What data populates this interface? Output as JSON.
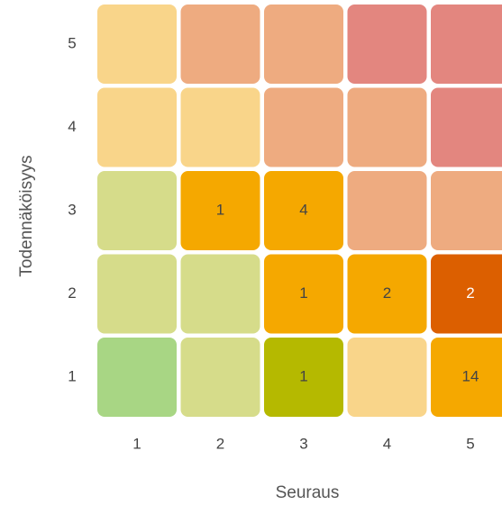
{
  "chart_data": {
    "type": "heatmap",
    "x_label": "Seuraus",
    "y_label": "Todennäköisyys",
    "x_categories": [
      1,
      2,
      3,
      4,
      5
    ],
    "y_categories": [
      1,
      2,
      3,
      4,
      5
    ],
    "values": [
      [
        null,
        null,
        1,
        null,
        14
      ],
      [
        null,
        null,
        1,
        2,
        2
      ],
      [
        null,
        1,
        4,
        null,
        null
      ],
      [
        null,
        null,
        null,
        null,
        null
      ],
      [
        null,
        null,
        null,
        null,
        null
      ]
    ],
    "colors": [
      [
        "#a8d684",
        "#d6dc8a",
        "#b5b900",
        "#f9d58a",
        "#f5a800"
      ],
      [
        "#d6dc8a",
        "#d6dc8a",
        "#f5a800",
        "#f5a800",
        "#dc5f00"
      ],
      [
        "#d6dc8a",
        "#f5a800",
        "#f5a800",
        "#eeab80",
        "#eeab80"
      ],
      [
        "#f9d58a",
        "#f9d58a",
        "#eeab80",
        "#eeab80",
        "#e3867f"
      ],
      [
        "#f9d58a",
        "#eeab80",
        "#eeab80",
        "#e3867f",
        "#e3867f"
      ]
    ]
  }
}
